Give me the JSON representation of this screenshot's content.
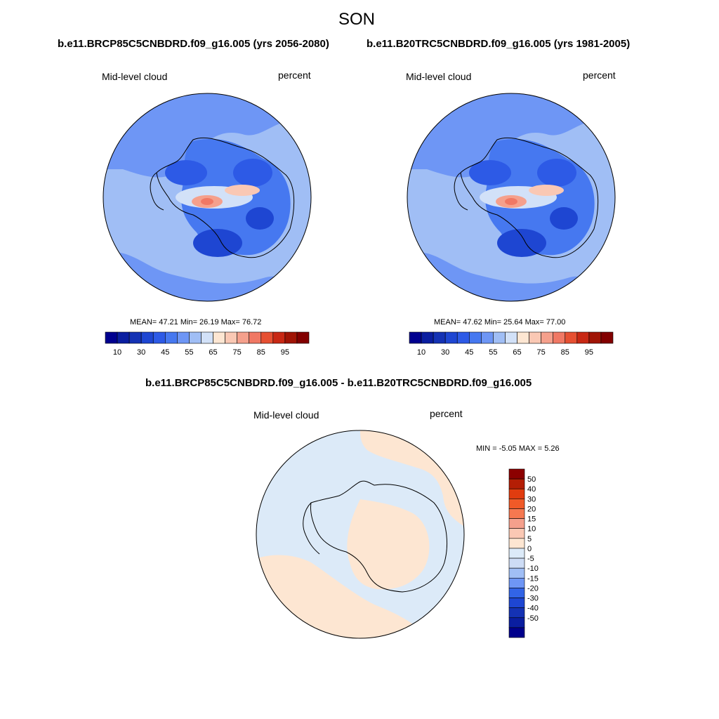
{
  "figure": {
    "season_title": "SON",
    "left_case_title": "b.e11.BRCP85C5CNBDRD.f09_g16.005 (yrs 2056-2080)",
    "right_case_title": "b.e11.B20TRC5CNBDRD.f09_g16.005 (yrs 1981-2005)",
    "diff_title": "b.e11.BRCP85C5CNBDRD.f09_g16.005 - b.e11.B20TRC5CNBDRD.f09_g16.005"
  },
  "panels": {
    "left": {
      "variable": "Mid-level cloud",
      "units": "percent",
      "stats": "MEAN=  47.21  Min=  26.19  Max=  76.72"
    },
    "right": {
      "variable": "Mid-level cloud",
      "units": "percent",
      "stats": "MEAN=  47.62  Min=  25.64  Max=  77.00"
    },
    "diff": {
      "variable": "Mid-level cloud",
      "units": "percent",
      "stats": "MIN =  -5.05 MAX =   5.26"
    }
  },
  "colors": {
    "field_colors": [
      "#00008f",
      "#0a1ea0",
      "#1432b4",
      "#1e46d2",
      "#2d5ae6",
      "#4678f0",
      "#6e96f5",
      "#a0bef5",
      "#d2e1f8",
      "#fde6d2",
      "#fac8b4",
      "#f5a08c",
      "#f07864",
      "#e65032",
      "#c82814",
      "#a01405",
      "#820000"
    ],
    "diff_colors": [
      "#00008c",
      "#0a1ea0",
      "#1432b4",
      "#1e46d2",
      "#3264e6",
      "#6e96f5",
      "#a0bef5",
      "#cddcf5",
      "#dceaf8",
      "#fde6d2",
      "#fac8b4",
      "#f5a08c",
      "#f57850",
      "#f05a28",
      "#e13c0f",
      "#b41e05",
      "#8c0000"
    ],
    "land_outline": "#000000"
  },
  "colorbars": {
    "field_labels": [
      "10",
      "30",
      "45",
      "55",
      "65",
      "75",
      "85",
      "95"
    ],
    "diff_labels": [
      "50",
      "40",
      "30",
      "20",
      "15",
      "10",
      "5",
      "0",
      "-5",
      "-10",
      "-15",
      "-20",
      "-30",
      "-40",
      "-50"
    ]
  },
  "chart_data": {
    "type": "contour-map",
    "projection": "south polar stereographic",
    "season": "SON",
    "variable": "Mid-level cloud",
    "units": "percent",
    "panels": [
      {
        "case": "b.e11.BRCP85C5CNBDRD.f09_g16.005",
        "years": "2056-2080",
        "mean": 47.21,
        "min": 26.19,
        "max": 76.72,
        "contour_levels": [
          10,
          20,
          30,
          35,
          40,
          45,
          50,
          55,
          60,
          65,
          70,
          75,
          80,
          85,
          90,
          95
        ]
      },
      {
        "case": "b.e11.B20TRC5CNBDRD.f09_g16.005",
        "years": "1981-2005",
        "mean": 47.62,
        "min": 25.64,
        "max": 77.0,
        "contour_levels": [
          10,
          20,
          30,
          35,
          40,
          45,
          50,
          55,
          60,
          65,
          70,
          75,
          80,
          85,
          90,
          95
        ]
      },
      {
        "case": "difference",
        "min": -5.05,
        "max": 5.26,
        "contour_levels": [
          -50,
          -40,
          -30,
          -20,
          -15,
          -10,
          -5,
          0,
          5,
          10,
          15,
          20,
          30,
          40,
          50
        ]
      }
    ]
  }
}
